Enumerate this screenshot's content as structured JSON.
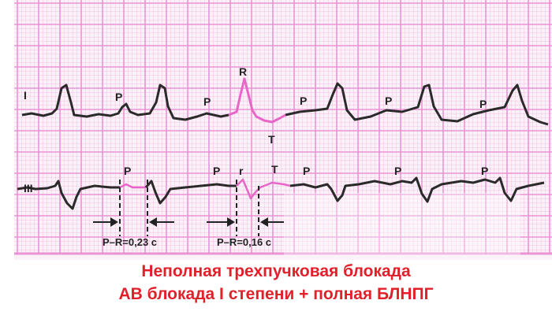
{
  "leads": {
    "lead_1": "I",
    "lead_3": "III"
  },
  "wave_labels": {
    "lead_1": [
      "P",
      "P",
      "R",
      "T",
      "P",
      "P",
      "P"
    ],
    "lead_3": [
      "P",
      "P",
      "r",
      "T",
      "P",
      "P",
      "P"
    ]
  },
  "intervals": {
    "first": "P–R=0,23 c",
    "second": "P–R=0,16 c"
  },
  "caption": {
    "line1": "Неполная трехпучковая блокада",
    "line2": "АВ блокада I степени + полная БЛНПГ"
  },
  "colors": {
    "grid": "#e98bd2",
    "trace": "#2a2a2a",
    "highlight": "#e866c8",
    "caption": "#e0202a"
  }
}
